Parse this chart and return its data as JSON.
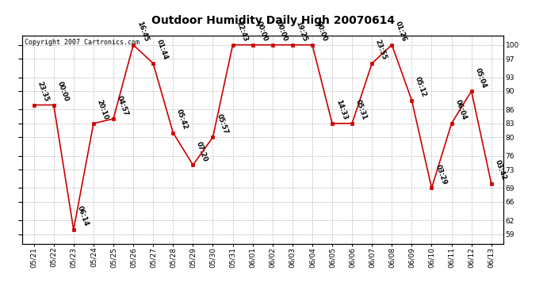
{
  "title": "Outdoor Humidity Daily High 20070614",
  "copyright": "Copyright 2007 Cartronics.com",
  "x_labels": [
    "05/21",
    "05/22",
    "05/23",
    "05/24",
    "05/25",
    "05/26",
    "05/27",
    "05/28",
    "05/29",
    "05/30",
    "05/31",
    "06/01",
    "06/02",
    "06/03",
    "06/04",
    "06/05",
    "06/06",
    "06/07",
    "06/08",
    "06/09",
    "06/10",
    "06/11",
    "06/12",
    "06/13"
  ],
  "y_values": [
    87,
    87,
    60,
    83,
    84,
    100,
    96,
    81,
    74,
    80,
    100,
    100,
    100,
    100,
    100,
    83,
    83,
    96,
    100,
    88,
    69,
    83,
    90,
    70
  ],
  "point_labels": [
    "23:35",
    "00:00",
    "06:14",
    "20:10",
    "04:57",
    "16:45",
    "01:44",
    "05:42",
    "07:20",
    "05:57",
    "22:43",
    "00:00",
    "00:00",
    "19:25",
    "00:00",
    "14:33",
    "05:31",
    "23:55",
    "01:26",
    "05:12",
    "03:29",
    "06:04",
    "05:04",
    "03:42"
  ],
  "line_color": "#cc0000",
  "marker_color": "#cc0000",
  "bg_color": "#ffffff",
  "plot_bg_color": "#ffffff",
  "grid_color": "#bbbbbb",
  "title_fontsize": 10,
  "label_fontsize": 6,
  "tick_fontsize": 6.5,
  "copyright_fontsize": 6,
  "y_ticks": [
    59,
    62,
    66,
    69,
    73,
    76,
    80,
    83,
    86,
    90,
    93,
    97,
    100
  ],
  "ylim": [
    57,
    102
  ],
  "xlim": [
    -0.6,
    23.6
  ],
  "marker_size": 2.5,
  "linewidth": 1.2
}
